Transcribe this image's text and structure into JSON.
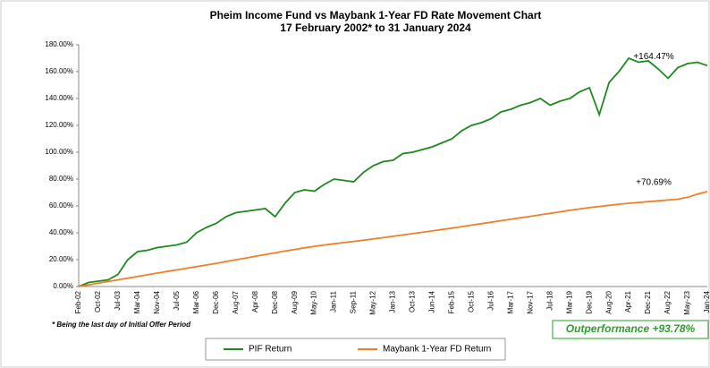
{
  "chart_data": {
    "type": "line",
    "title": "Pheim Income Fund vs Maybank 1-Year FD Rate Movement Chart",
    "subtitle": "17 February 2002* to 31 January 2024",
    "categories": [
      "Feb-02",
      null,
      "Oct-02",
      null,
      "Jul-03",
      null,
      "Mar-04",
      null,
      "Nov-04",
      null,
      "Jul-05",
      null,
      "Mar-06",
      null,
      "Dec-06",
      null,
      "Aug-07",
      null,
      "Apr-08",
      null,
      "Dec-08",
      null,
      "Aug-09",
      null,
      "May-10",
      null,
      "Jan-11",
      null,
      "Sep-11",
      null,
      "May-12",
      null,
      "Jan-13",
      null,
      "Oct-13",
      null,
      "Jun-14",
      null,
      "Feb-15",
      null,
      "Oct-15",
      null,
      "Jul-16",
      null,
      "Mar-17",
      null,
      "Nov-17",
      null,
      "Jul-18",
      null,
      "Mar-19",
      null,
      "Dec-19",
      null,
      "Aug-20",
      null,
      "Apr-21",
      null,
      "Dec-21",
      null,
      "Aug-22",
      null,
      "May-23",
      null,
      "Jan-24"
    ],
    "series": [
      {
        "name": "PIF Return",
        "color": "#1e8a1e",
        "values": [
          0,
          3,
          4,
          5,
          9,
          20,
          26,
          27,
          29,
          30,
          31,
          33,
          40,
          44,
          47,
          52,
          55,
          56,
          57,
          58,
          52,
          62,
          70,
          72,
          71,
          76,
          80,
          79,
          78,
          85,
          90,
          93,
          94,
          99,
          100,
          102,
          104,
          107,
          110,
          116,
          120,
          122,
          125,
          130,
          132,
          135,
          137,
          140,
          135,
          138,
          140,
          145,
          148,
          128,
          152,
          160,
          170,
          167,
          168,
          162,
          155,
          163,
          166,
          167,
          164.47
        ]
      },
      {
        "name": "Maybank 1-Year FD Return",
        "color": "#f07f2a",
        "values": [
          0,
          1.2,
          2.5,
          3.7,
          5,
          6.2,
          7.5,
          8.7,
          10,
          11.2,
          12.4,
          13.6,
          14.8,
          16,
          17.3,
          18.6,
          19.9,
          21.2,
          22.5,
          23.8,
          25.1,
          26.4,
          27.6,
          28.8,
          29.9,
          30.9,
          31.8,
          32.7,
          33.6,
          34.5,
          35.4,
          36.4,
          37.4,
          38.4,
          39.4,
          40.4,
          41.4,
          42.5,
          43.5,
          44.6,
          45.7,
          46.8,
          47.9,
          49,
          50.1,
          51.2,
          52.3,
          53.4,
          54.5,
          55.6,
          56.7,
          57.7,
          58.7,
          59.6,
          60.5,
          61.3,
          62,
          62.6,
          63.2,
          63.8,
          64.4,
          65,
          66.5,
          68.8,
          70.69
        ]
      }
    ],
    "annotations": [
      "+164.47%",
      "+70.69%"
    ],
    "footnote": "* Being the last day of Initial Offer Period",
    "callout": "Outperformance +93.78%",
    "ylim": [
      0,
      180
    ],
    "yticks": [
      {
        "value": 0,
        "label": "0.00%"
      },
      {
        "value": 20,
        "label": "20.00%"
      },
      {
        "value": 40,
        "label": "40.00%"
      },
      {
        "value": 60,
        "label": "60.00%"
      },
      {
        "value": 80,
        "label": "80.00%"
      },
      {
        "value": 100,
        "label": "100.00%"
      },
      {
        "value": 120,
        "label": "120.00%"
      },
      {
        "value": 140,
        "label": "140.00%"
      },
      {
        "value": 160,
        "label": "160.00%"
      },
      {
        "value": 180,
        "label": "180.00%"
      }
    ],
    "legend": "bottom"
  }
}
